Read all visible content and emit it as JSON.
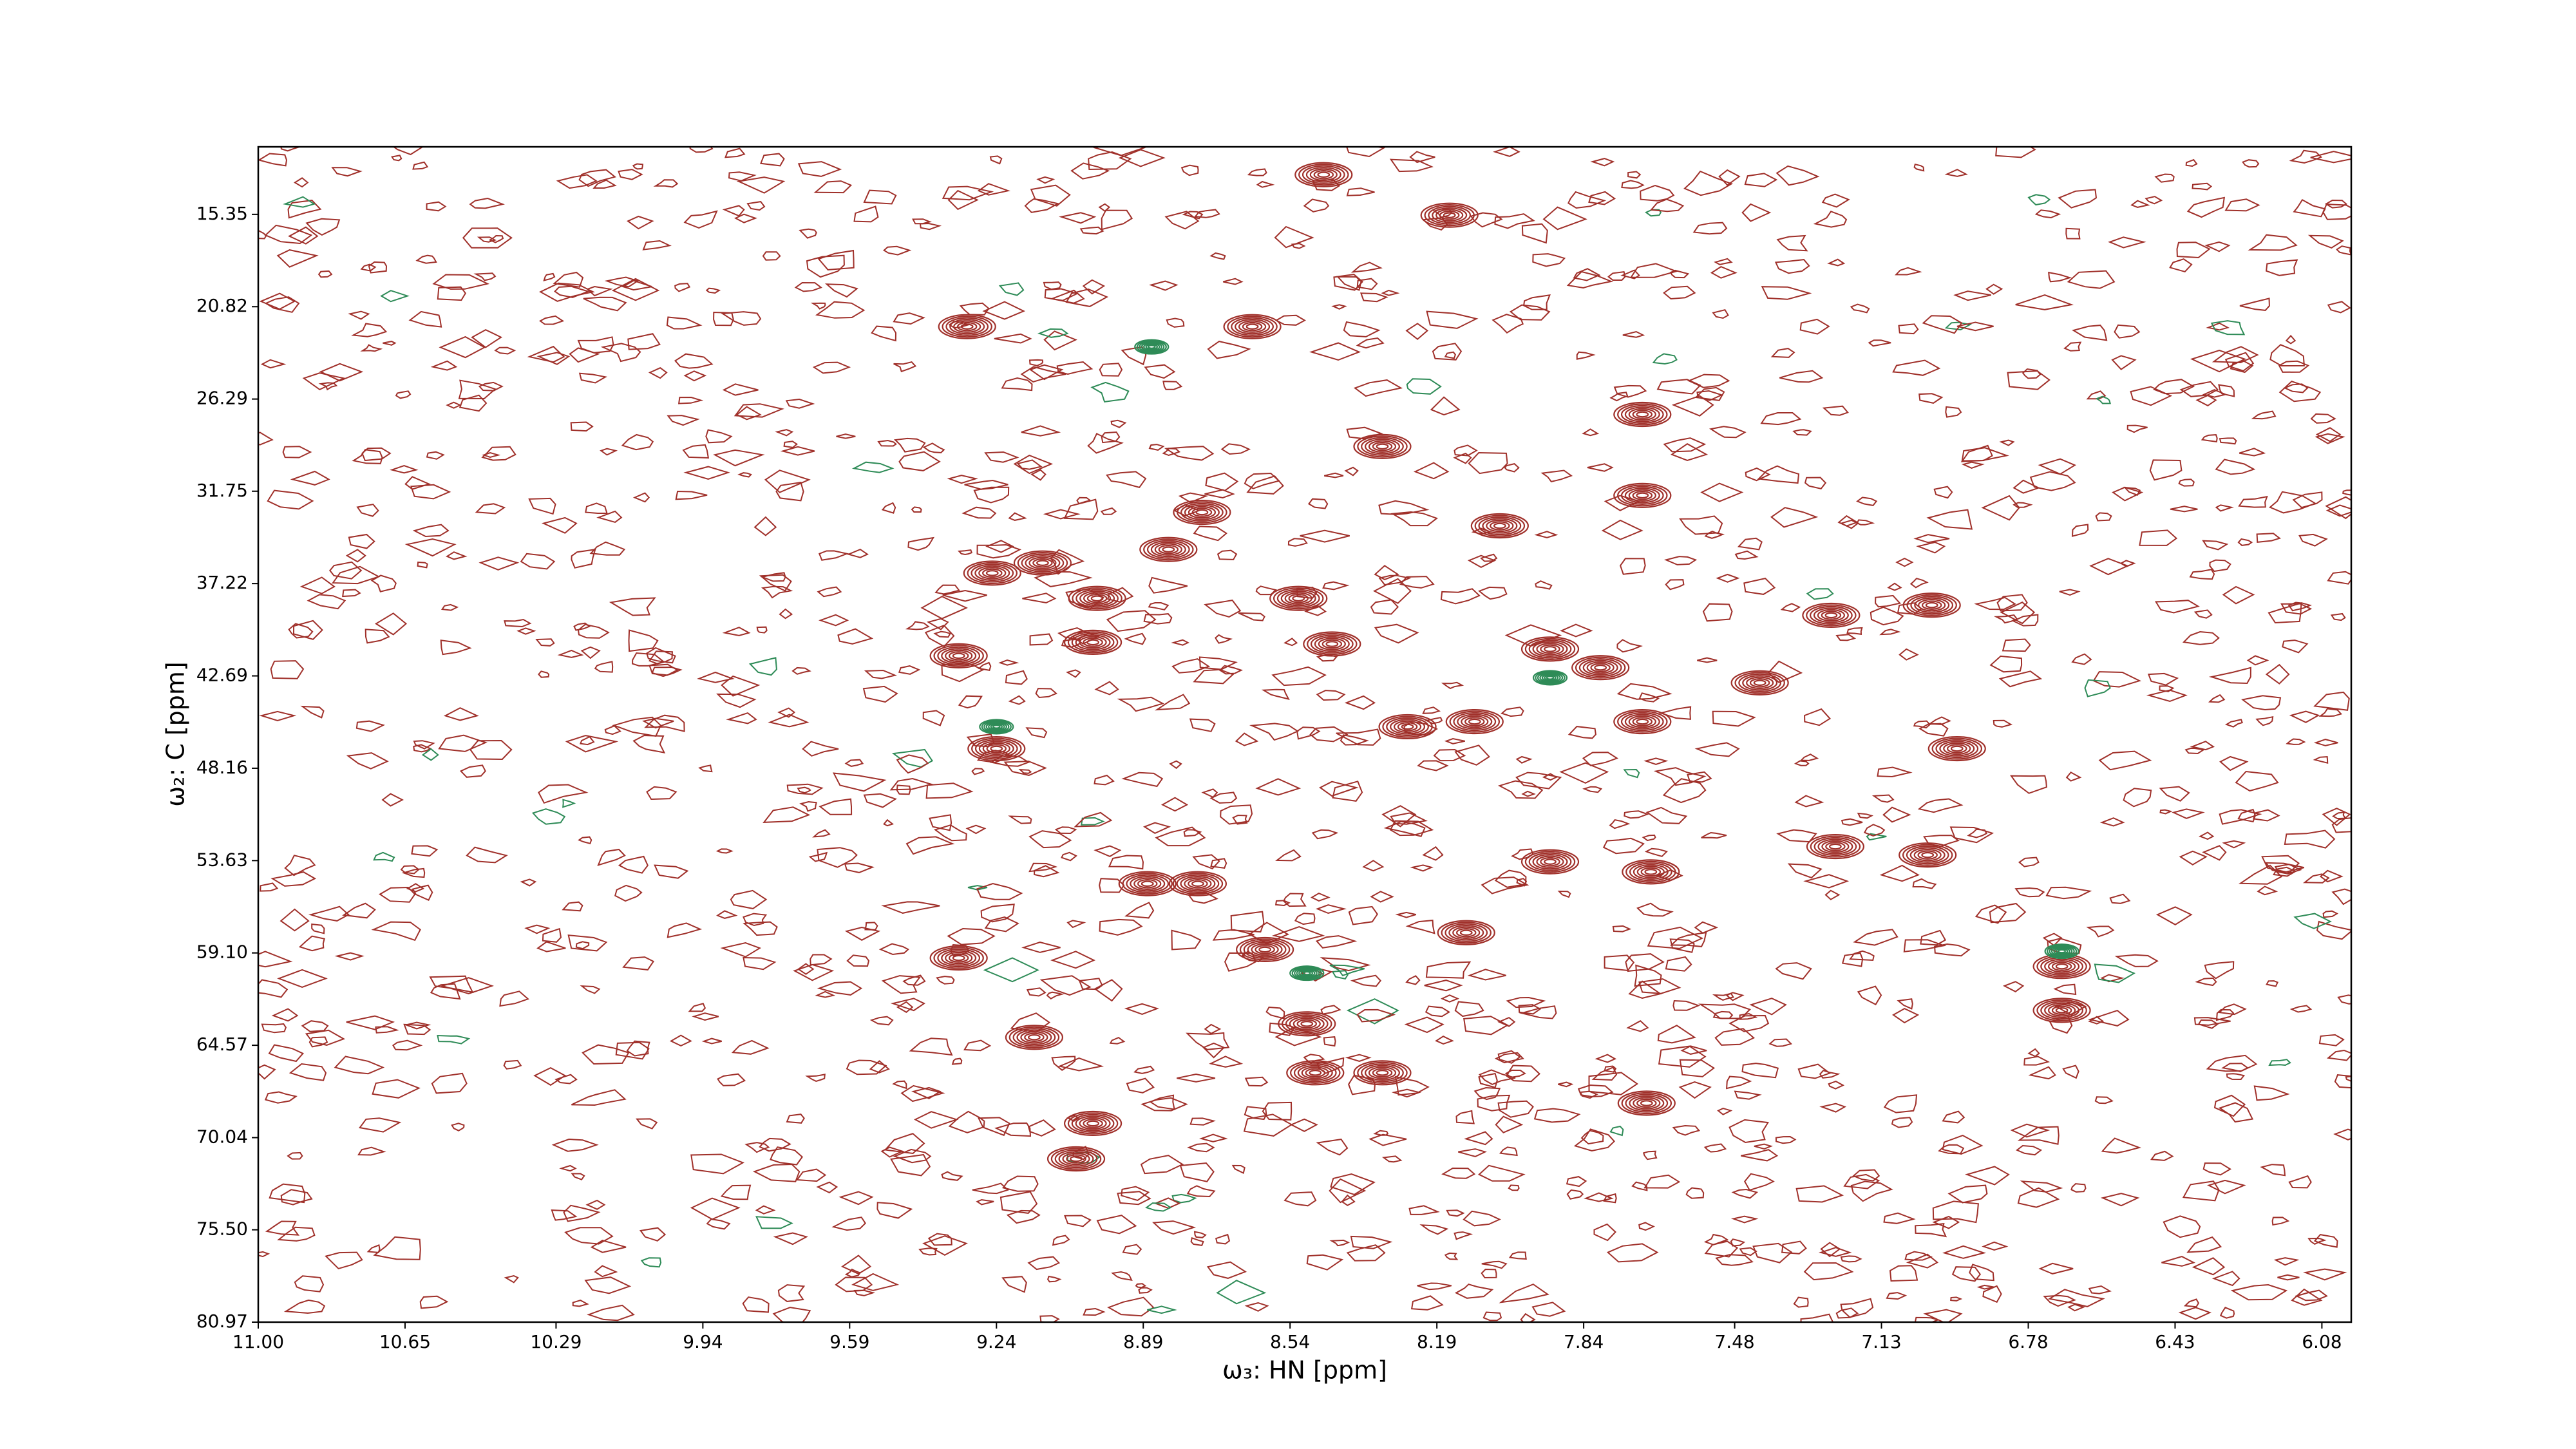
{
  "chart_data": {
    "type": "contour",
    "xlabel": "ω₃: HN [ppm]",
    "ylabel": "ω₂: C [ppm]",
    "xlim": [
      11.0,
      6.01
    ],
    "ylim": [
      80.97,
      11.35
    ],
    "xticks": [
      {
        "value": 11,
        "label": "11.00"
      },
      10.65,
      10.29,
      9.94,
      9.59,
      9.24,
      8.89,
      8.54,
      8.19,
      7.84,
      7.48,
      7.13,
      6.78,
      6.43,
      6.08
    ],
    "yticks": [
      15.35,
      20.82,
      26.29,
      31.75,
      37.22,
      42.69,
      48.16,
      53.63,
      {
        "value": 59.1,
        "label": "59.10"
      },
      64.57,
      70.04,
      {
        "value": 75.5,
        "label": "75.50"
      },
      80.97
    ],
    "series": [
      {
        "color": "#a0302a",
        "x": [
          9.24,
          9.33,
          9.25,
          9.13,
          9.01,
          9.0,
          9.15,
          9.33,
          9.01,
          9.05,
          8.88,
          8.76,
          8.5,
          8.48,
          8.52,
          8.44,
          8.26,
          8.1,
          7.92,
          7.7,
          7.42,
          7.25,
          7.01,
          6.95,
          6.7,
          6.7,
          7.69,
          8.32,
          9.31,
          8.63,
          8.46,
          8.16,
          8.32,
          8.75,
          7.24,
          7.02,
          7.92,
          7.68,
          8.6,
          8.12,
          7.7,
          7.7,
          8.83,
          8.04,
          7.8
        ],
        "y": [
          47.0,
          41.5,
          36.6,
          36.0,
          40.7,
          38.1,
          64.1,
          59.4,
          69.2,
          71.3,
          55.0,
          55.0,
          63.3,
          66.2,
          38.1,
          40.8,
          45.7,
          45.4,
          41.1,
          45.4,
          43.1,
          39.1,
          38.5,
          47.0,
          59.9,
          62.5,
          68.0,
          66.2,
          22.0,
          22.0,
          13.0,
          15.4,
          29.1,
          33.0,
          52.8,
          53.3,
          53.7,
          54.3,
          58.9,
          57.9,
          27.2,
          32.0,
          35.2,
          33.8,
          42.2
        ]
      },
      {
        "color": "#2e8b57",
        "x": [
          9.24,
          7.92,
          8.5,
          6.7,
          8.87
        ],
        "y": [
          45.7,
          42.8,
          60.3,
          59.0,
          23.2
        ]
      }
    ]
  }
}
